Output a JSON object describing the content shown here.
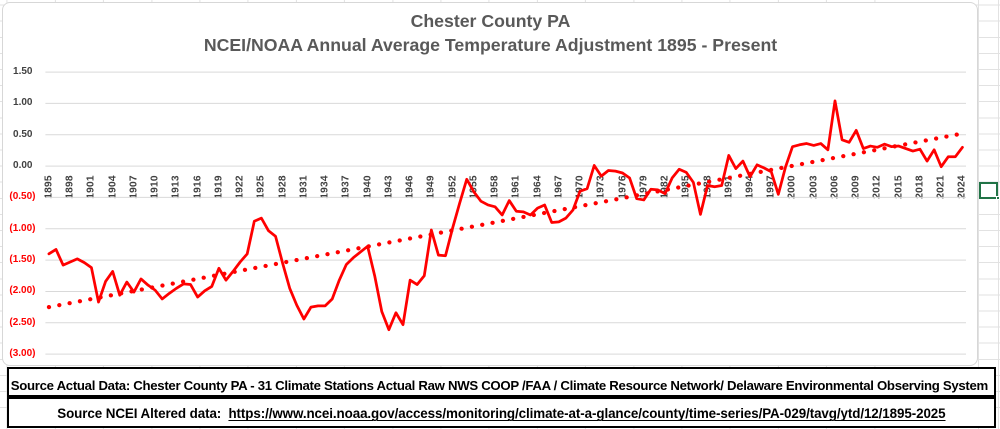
{
  "app": "excel-worksheet",
  "chart": {
    "title_line1": "Chester County PA",
    "title_line2": "NCEI/NOAA Annual Average Temperature Adjustment 1895 - Present",
    "title_color": "#595959",
    "series_color": "#ff0000",
    "gridline_color": "#d9d9d9",
    "negative_tick_color": "#ff0000",
    "axis_tick_color": "#404040"
  },
  "chart_data": {
    "type": "line",
    "title": "Chester County PA — NCEI/NOAA Annual Average Temperature Adjustment 1895 - Present",
    "xlabel": "",
    "ylabel": "",
    "ylim": [
      -3.0,
      1.5
    ],
    "grid": true,
    "legend": false,
    "x_start_year": 1895,
    "x_end_year": 2024,
    "y_ticks": [
      {
        "label": "1.50",
        "value": 1.5,
        "negative": false
      },
      {
        "label": "1.00",
        "value": 1.0,
        "negative": false
      },
      {
        "label": "0.50",
        "value": 0.5,
        "negative": false
      },
      {
        "label": "0.00",
        "value": 0.0,
        "negative": false
      },
      {
        "label": "(0.50)",
        "value": -0.5,
        "negative": true
      },
      {
        "label": "(1.00)",
        "value": -1.0,
        "negative": true
      },
      {
        "label": "(1.50)",
        "value": -1.5,
        "negative": true
      },
      {
        "label": "(2.00)",
        "value": -2.0,
        "negative": true
      },
      {
        "label": "(2.50)",
        "value": -2.5,
        "negative": true
      },
      {
        "label": "(3.00)",
        "value": -3.0,
        "negative": true
      }
    ],
    "x_tick_labels": [
      "1895",
      "1898",
      "1901",
      "1904",
      "1907",
      "1910",
      "1913",
      "1916",
      "1919",
      "1922",
      "1925",
      "1928",
      "1931",
      "1934",
      "1937",
      "1940",
      "1943",
      "1946",
      "1949",
      "1952",
      "1955",
      "1958",
      "1961",
      "1964",
      "1967",
      "1970",
      "1973",
      "1976",
      "1979",
      "1982",
      "1985",
      "1988",
      "1991",
      "1994",
      "1997",
      "2000",
      "2003",
      "2006",
      "2009",
      "2012",
      "2015",
      "2018",
      "2021",
      "2024"
    ],
    "series": [
      {
        "name": "Annual average temperature adjustment",
        "color": "#ff0000",
        "values": [
          -1.4,
          -1.33,
          -1.58,
          -1.53,
          -1.48,
          -1.54,
          -1.62,
          -2.17,
          -1.84,
          -1.68,
          -2.06,
          -1.85,
          -2.01,
          -1.8,
          -1.9,
          -1.98,
          -2.12,
          -2.03,
          -1.95,
          -1.88,
          -1.89,
          -2.09,
          -1.99,
          -1.92,
          -1.63,
          -1.82,
          -1.68,
          -1.53,
          -1.4,
          -0.88,
          -0.83,
          -1.03,
          -1.12,
          -1.55,
          -1.95,
          -2.22,
          -2.44,
          -2.25,
          -2.23,
          -2.23,
          -2.12,
          -1.82,
          -1.57,
          -1.46,
          -1.37,
          -1.28,
          -1.75,
          -2.32,
          -2.61,
          -2.34,
          -2.53,
          -1.82,
          -1.89,
          -1.75,
          -1.02,
          -1.42,
          -1.43,
          -0.99,
          -0.59,
          -0.21,
          -0.41,
          -0.56,
          -0.62,
          -0.65,
          -0.78,
          -0.55,
          -0.72,
          -0.73,
          -0.78,
          -0.67,
          -0.62,
          -0.9,
          -0.89,
          -0.83,
          -0.7,
          -0.4,
          -0.36,
          0.01,
          -0.16,
          -0.07,
          -0.08,
          -0.11,
          -0.19,
          -0.52,
          -0.54,
          -0.37,
          -0.38,
          -0.44,
          -0.19,
          -0.05,
          -0.1,
          -0.26,
          -0.77,
          -0.31,
          -0.33,
          -0.31,
          0.17,
          -0.04,
          0.08,
          -0.17,
          0.02,
          -0.03,
          -0.09,
          -0.45,
          -0.02,
          0.31,
          0.34,
          0.36,
          0.33,
          0.36,
          0.26,
          1.04,
          0.42,
          0.38,
          0.57,
          0.28,
          0.32,
          0.3,
          0.35,
          0.31,
          0.32,
          0.28,
          0.24,
          0.27,
          0.08,
          0.26,
          -0.01,
          0.15,
          0.15,
          0.3
        ]
      }
    ],
    "trendline": {
      "type": "linear",
      "style": "round-dot",
      "color": "#ff0000",
      "start_year": 1895,
      "start_value": -2.25,
      "end_year": 2024,
      "end_value": 0.52
    }
  },
  "source_boxes": {
    "box1_text": "Source Actual Data: Chester County PA - 31 Climate Stations Actual Raw NWS COOP /FAA / Climate Resource Network/ Delaware Environmental Observing System",
    "box2_label": "Source NCEI Altered data:  ",
    "box2_url_text": "https://www.ncei.noaa.gov/access/monitoring/climate-at-a-glance/county/time-series/PA-029/tavg/ytd/12/1895-2025"
  },
  "sheet": {
    "selected_cell_color": "#217346",
    "gridline_color": "#e2e2e2"
  }
}
